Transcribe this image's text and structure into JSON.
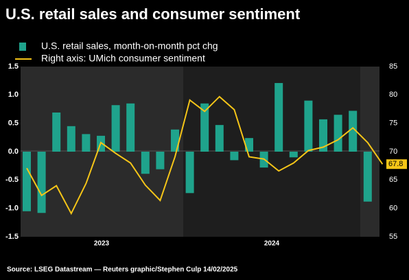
{
  "chart_data": {
    "type": "bar",
    "title": "U.S. retail sales and consumer sentiment",
    "source": "Source: LSEG Datastream — Reuters graphic/Stephen Culp 14/02/2025",
    "categories": [
      null,
      null,
      null,
      null,
      null,
      null,
      null,
      null,
      null,
      null,
      null,
      null,
      null,
      null,
      null,
      null,
      null,
      null,
      null,
      null,
      null,
      null,
      null,
      null,
      null
    ],
    "year_labels": [
      "2023",
      "2024"
    ],
    "series": [
      {
        "name": "U.S. retail sales, month-on-month pct chg",
        "type": "bar",
        "color": "#1fa38c",
        "values": [
          -1.05,
          -1.08,
          0.69,
          0.45,
          0.31,
          0.28,
          0.82,
          0.85,
          -0.39,
          -0.31,
          0.39,
          -0.73,
          0.85,
          0.47,
          -0.15,
          0.24,
          -0.28,
          1.21,
          -0.1,
          0.9,
          0.57,
          0.65,
          0.72,
          -0.88,
          null
        ]
      },
      {
        "name": "Right axis: UMich consumer sentiment",
        "type": "line",
        "axis": "y2",
        "color": "#f5c518",
        "values": [
          67.1,
          62.3,
          64.0,
          59.1,
          64.4,
          71.6,
          69.7,
          68.0,
          64.1,
          61.4,
          69.1,
          79.1,
          77.1,
          79.7,
          77.4,
          69.1,
          68.7,
          66.6,
          68.0,
          70.2,
          70.8,
          72.1,
          74.2,
          71.6,
          67.8
        ]
      }
    ],
    "ylim": [
      -1.5,
      1.5
    ],
    "yticks": [
      {
        "value": -1.5,
        "label": "-1.5"
      },
      {
        "value": -1.0,
        "label": "-1.0"
      },
      -0.5,
      {
        "value": 0,
        "label": "0.0"
      },
      0.5,
      {
        "value": 1.0,
        "label": "1.0"
      },
      1.5
    ],
    "y2lim": [
      55,
      85
    ],
    "y2ticks": [
      55,
      60,
      65,
      70,
      75,
      80,
      85
    ],
    "grid": false
  }
}
